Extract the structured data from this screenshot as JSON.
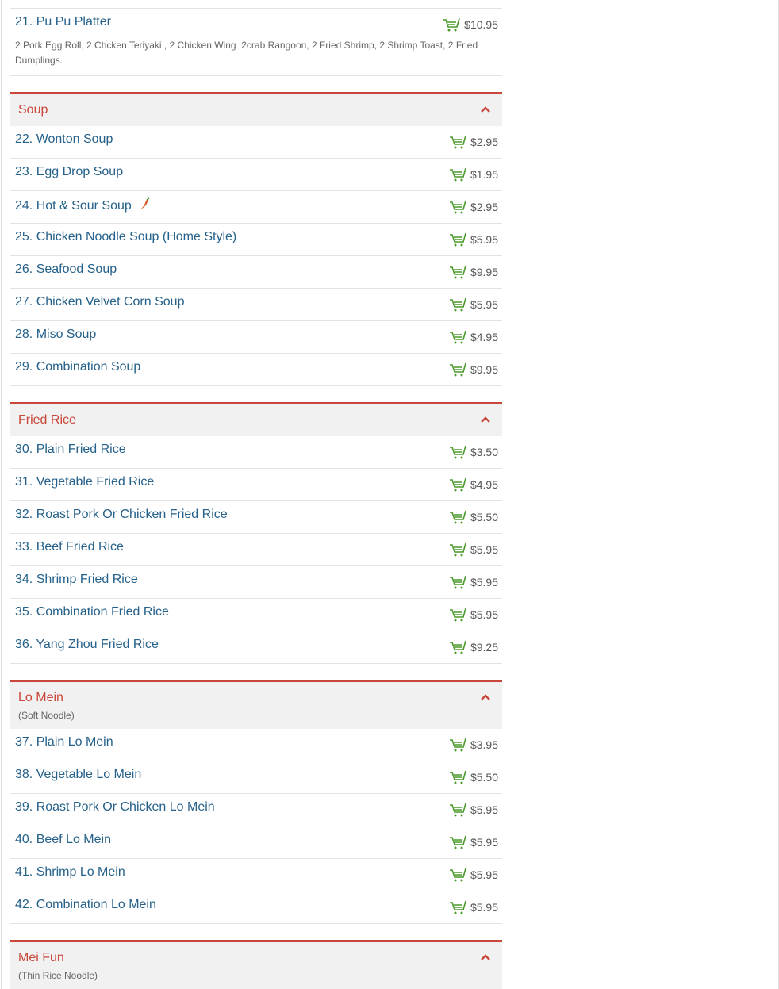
{
  "colors": {
    "accent": "#c9463a",
    "item_link": "#25618a",
    "cart": "#4a9a2a",
    "header_bg": "#f1f1f1"
  },
  "top_item": {
    "name": "21. Pu Pu Platter",
    "price": "$10.95",
    "description": "2 Pork Egg Roll, 2 Chcken Teriyaki , 2 Chicken Wing ,2crab Rangoon, 2 Fried Shrimp, 2 Shrimp Toast, 2 Fried Dumplings."
  },
  "sections": [
    {
      "title": "Soup",
      "subtitle": "",
      "items": [
        {
          "name": "22. Wonton Soup",
          "price": "$2.95"
        },
        {
          "name": "23. Egg Drop Soup",
          "price": "$1.95"
        },
        {
          "name": "24. Hot & Sour Soup",
          "price": "$2.95",
          "spicy": true
        },
        {
          "name": "25. Chicken Noodle Soup (Home Style)",
          "price": "$5.95"
        },
        {
          "name": "26. Seafood Soup",
          "price": "$9.95"
        },
        {
          "name": "27. Chicken Velvet Corn Soup",
          "price": "$5.95"
        },
        {
          "name": "28. Miso Soup",
          "price": "$4.95"
        },
        {
          "name": "29. Combination Soup",
          "price": "$9.95"
        }
      ]
    },
    {
      "title": "Fried Rice",
      "subtitle": "",
      "items": [
        {
          "name": "30. Plain Fried Rice",
          "price": "$3.50"
        },
        {
          "name": "31. Vegetable Fried Rice",
          "price": "$4.95"
        },
        {
          "name": "32. Roast Pork Or Chicken Fried Rice",
          "price": "$5.50"
        },
        {
          "name": "33. Beef Fried Rice",
          "price": "$5.95"
        },
        {
          "name": "34. Shrimp Fried Rice",
          "price": "$5.95"
        },
        {
          "name": "35. Combination Fried Rice",
          "price": "$5.95"
        },
        {
          "name": "36. Yang Zhou Fried Rice",
          "price": "$9.25"
        }
      ]
    },
    {
      "title": "Lo Mein",
      "subtitle": "(Soft Noodle)",
      "items": [
        {
          "name": "37. Plain Lo Mein",
          "price": "$3.95"
        },
        {
          "name": "38. Vegetable Lo Mein",
          "price": "$5.50"
        },
        {
          "name": "39. Roast Pork Or Chicken Lo Mein",
          "price": "$5.95"
        },
        {
          "name": "40. Beef Lo Mein",
          "price": "$5.95"
        },
        {
          "name": "41. Shrimp Lo Mein",
          "price": "$5.95"
        },
        {
          "name": "42. Combination Lo Mein",
          "price": "$5.95"
        }
      ]
    },
    {
      "title": "Mei Fun",
      "subtitle": "(Thin Rice Noodle)",
      "items": []
    }
  ]
}
